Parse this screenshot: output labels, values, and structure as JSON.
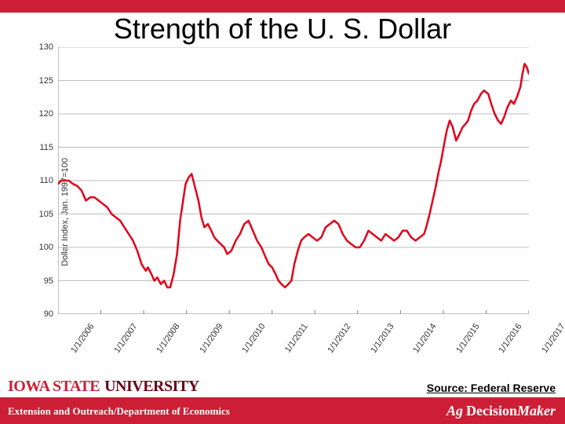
{
  "colors": {
    "accent": "#cc1f36",
    "series": "#e2001a",
    "grid": "#bdbdbd",
    "axis": "#808080",
    "tick_text": "#333333",
    "bg": "#ffffff"
  },
  "title": "Strength of the U. S. Dollar",
  "source": "Source: Federal Reserve",
  "org_logo_text_a": "IOWA STATE",
  "org_logo_text_b": "UNIVERSITY",
  "ext_line": "Extension and Outreach/Department of Economics",
  "agdm_ag": "Ag",
  "agdm_dec": "Decision",
  "agdm_maker": "Maker",
  "chart": {
    "type": "line",
    "y_label": "Dollar Index, Jan. 1997=100",
    "title_fontsize": 36,
    "tick_fontsize": 11,
    "line_width": 2.5,
    "ylim": [
      90,
      130
    ],
    "ytick_step": 5,
    "y_ticks": [
      90,
      95,
      100,
      105,
      110,
      115,
      120,
      125,
      130
    ],
    "x_categories": [
      "1/1/2006",
      "1/1/2007",
      "1/1/2008",
      "1/1/2009",
      "1/1/2010",
      "1/1/2011",
      "1/1/2012",
      "1/1/2013",
      "1/1/2014",
      "1/1/2015",
      "1/1/2016",
      "1/1/2017"
    ],
    "x_n_intervals": 11,
    "x_tick_rotation": -55,
    "series": [
      {
        "name": "dollar_index",
        "color": "#e2001a",
        "points": [
          [
            0.0,
            109.5
          ],
          [
            0.07,
            110.0
          ],
          [
            0.15,
            110.0
          ],
          [
            0.25,
            110.0
          ],
          [
            0.35,
            109.5
          ],
          [
            0.45,
            109.2
          ],
          [
            0.55,
            108.5
          ],
          [
            0.65,
            107.0
          ],
          [
            0.75,
            107.5
          ],
          [
            0.85,
            107.5
          ],
          [
            0.95,
            107.0
          ],
          [
            1.05,
            106.5
          ],
          [
            1.15,
            106.0
          ],
          [
            1.25,
            105.0
          ],
          [
            1.35,
            104.5
          ],
          [
            1.45,
            104.0
          ],
          [
            1.55,
            103.0
          ],
          [
            1.65,
            102.0
          ],
          [
            1.75,
            101.0
          ],
          [
            1.85,
            99.5
          ],
          [
            1.95,
            97.5
          ],
          [
            2.05,
            96.5
          ],
          [
            2.1,
            97.0
          ],
          [
            2.18,
            96.0
          ],
          [
            2.25,
            95.0
          ],
          [
            2.32,
            95.5
          ],
          [
            2.4,
            94.5
          ],
          [
            2.48,
            95.0
          ],
          [
            2.55,
            94.0
          ],
          [
            2.62,
            94.0
          ],
          [
            2.7,
            96.0
          ],
          [
            2.78,
            99.0
          ],
          [
            2.85,
            104.0
          ],
          [
            2.92,
            107.0
          ],
          [
            2.98,
            109.5
          ],
          [
            3.05,
            110.5
          ],
          [
            3.12,
            111.0
          ],
          [
            3.2,
            109.0
          ],
          [
            3.28,
            107.0
          ],
          [
            3.35,
            104.5
          ],
          [
            3.42,
            103.0
          ],
          [
            3.5,
            103.5
          ],
          [
            3.58,
            102.5
          ],
          [
            3.65,
            101.5
          ],
          [
            3.72,
            101.0
          ],
          [
            3.8,
            100.5
          ],
          [
            3.88,
            100.0
          ],
          [
            3.95,
            99.0
          ],
          [
            4.05,
            99.5
          ],
          [
            4.15,
            101.0
          ],
          [
            4.25,
            102.0
          ],
          [
            4.35,
            103.5
          ],
          [
            4.45,
            104.0
          ],
          [
            4.55,
            102.5
          ],
          [
            4.65,
            101.0
          ],
          [
            4.75,
            100.0
          ],
          [
            4.85,
            98.5
          ],
          [
            4.92,
            97.5
          ],
          [
            5.0,
            97.0
          ],
          [
            5.08,
            96.0
          ],
          [
            5.15,
            95.0
          ],
          [
            5.22,
            94.5
          ],
          [
            5.3,
            94.0
          ],
          [
            5.38,
            94.5
          ],
          [
            5.45,
            95.0
          ],
          [
            5.52,
            97.5
          ],
          [
            5.6,
            99.5
          ],
          [
            5.68,
            101.0
          ],
          [
            5.75,
            101.5
          ],
          [
            5.85,
            102.0
          ],
          [
            5.95,
            101.5
          ],
          [
            6.05,
            101.0
          ],
          [
            6.15,
            101.5
          ],
          [
            6.25,
            103.0
          ],
          [
            6.35,
            103.5
          ],
          [
            6.45,
            104.0
          ],
          [
            6.55,
            103.5
          ],
          [
            6.65,
            102.0
          ],
          [
            6.75,
            101.0
          ],
          [
            6.85,
            100.5
          ],
          [
            6.95,
            100.0
          ],
          [
            7.05,
            100.0
          ],
          [
            7.15,
            101.0
          ],
          [
            7.25,
            102.5
          ],
          [
            7.35,
            102.0
          ],
          [
            7.45,
            101.5
          ],
          [
            7.55,
            101.0
          ],
          [
            7.65,
            102.0
          ],
          [
            7.75,
            101.5
          ],
          [
            7.85,
            101.0
          ],
          [
            7.95,
            101.5
          ],
          [
            8.05,
            102.5
          ],
          [
            8.15,
            102.5
          ],
          [
            8.25,
            101.5
          ],
          [
            8.35,
            101.0
          ],
          [
            8.45,
            101.5
          ],
          [
            8.55,
            102.0
          ],
          [
            8.6,
            103.0
          ],
          [
            8.68,
            105.0
          ],
          [
            8.75,
            107.0
          ],
          [
            8.82,
            109.0
          ],
          [
            8.88,
            111.0
          ],
          [
            8.95,
            113.0
          ],
          [
            9.02,
            115.5
          ],
          [
            9.08,
            117.5
          ],
          [
            9.15,
            119.0
          ],
          [
            9.22,
            118.0
          ],
          [
            9.3,
            116.0
          ],
          [
            9.38,
            117.0
          ],
          [
            9.45,
            118.0
          ],
          [
            9.52,
            118.5
          ],
          [
            9.58,
            119.0
          ],
          [
            9.65,
            120.5
          ],
          [
            9.72,
            121.5
          ],
          [
            9.8,
            122.0
          ],
          [
            9.88,
            123.0
          ],
          [
            9.95,
            123.5
          ],
          [
            10.05,
            123.0
          ],
          [
            10.12,
            121.5
          ],
          [
            10.2,
            120.0
          ],
          [
            10.28,
            119.0
          ],
          [
            10.35,
            118.5
          ],
          [
            10.42,
            119.5
          ],
          [
            10.5,
            121.0
          ],
          [
            10.58,
            122.0
          ],
          [
            10.65,
            121.5
          ],
          [
            10.72,
            122.5
          ],
          [
            10.8,
            124.0
          ],
          [
            10.85,
            126.0
          ],
          [
            10.9,
            127.5
          ],
          [
            10.95,
            127.0
          ],
          [
            11.0,
            126.0
          ]
        ]
      }
    ]
  }
}
